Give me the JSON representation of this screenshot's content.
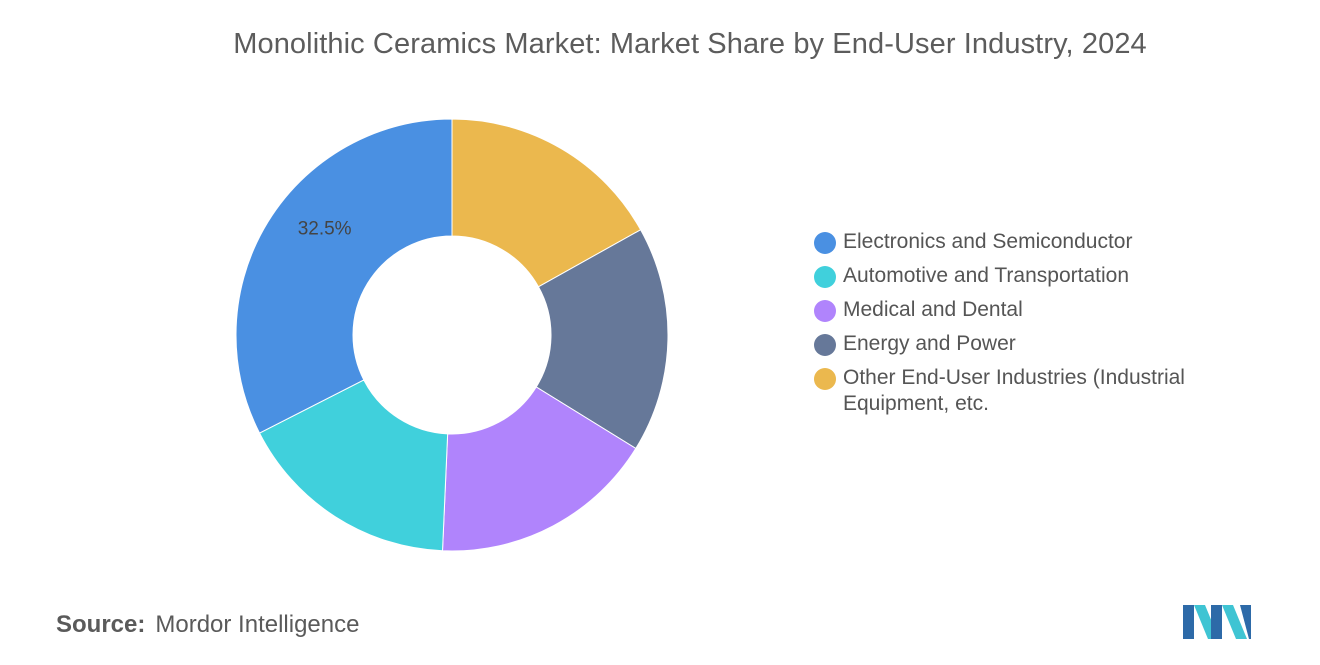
{
  "chart_data": {
    "type": "pie",
    "variant": "donut",
    "title": "Monolithic Ceramics Market: Market Share by End-User Industry, 2024",
    "slices": [
      {
        "label": "Electronics and Semiconductor",
        "value": 32.5,
        "color": "#4A90E2",
        "data_label": "32.5%"
      },
      {
        "label": "Automotive and Transportation",
        "value": 16.8,
        "color": "#40D0DC",
        "data_label": ""
      },
      {
        "label": "Medical and Dental",
        "value": 16.9,
        "color": "#B084FC",
        "data_label": ""
      },
      {
        "label": "Energy and Power",
        "value": 16.9,
        "color": "#667899",
        "data_label": ""
      },
      {
        "label": "Other End-User Industries (Industrial Equipment, etc.",
        "value": 16.9,
        "color": "#EBB84E",
        "data_label": ""
      }
    ],
    "start_at": "12 o'clock",
    "direction": "clockwise, starting with the last slice",
    "legend_position": "right"
  },
  "source": {
    "label": "Source:",
    "name": "Mordor Intelligence"
  },
  "logo": {
    "icon": "mordor-intelligence-logo",
    "colors": [
      "#2D6AA8",
      "#3FC4D3"
    ]
  }
}
